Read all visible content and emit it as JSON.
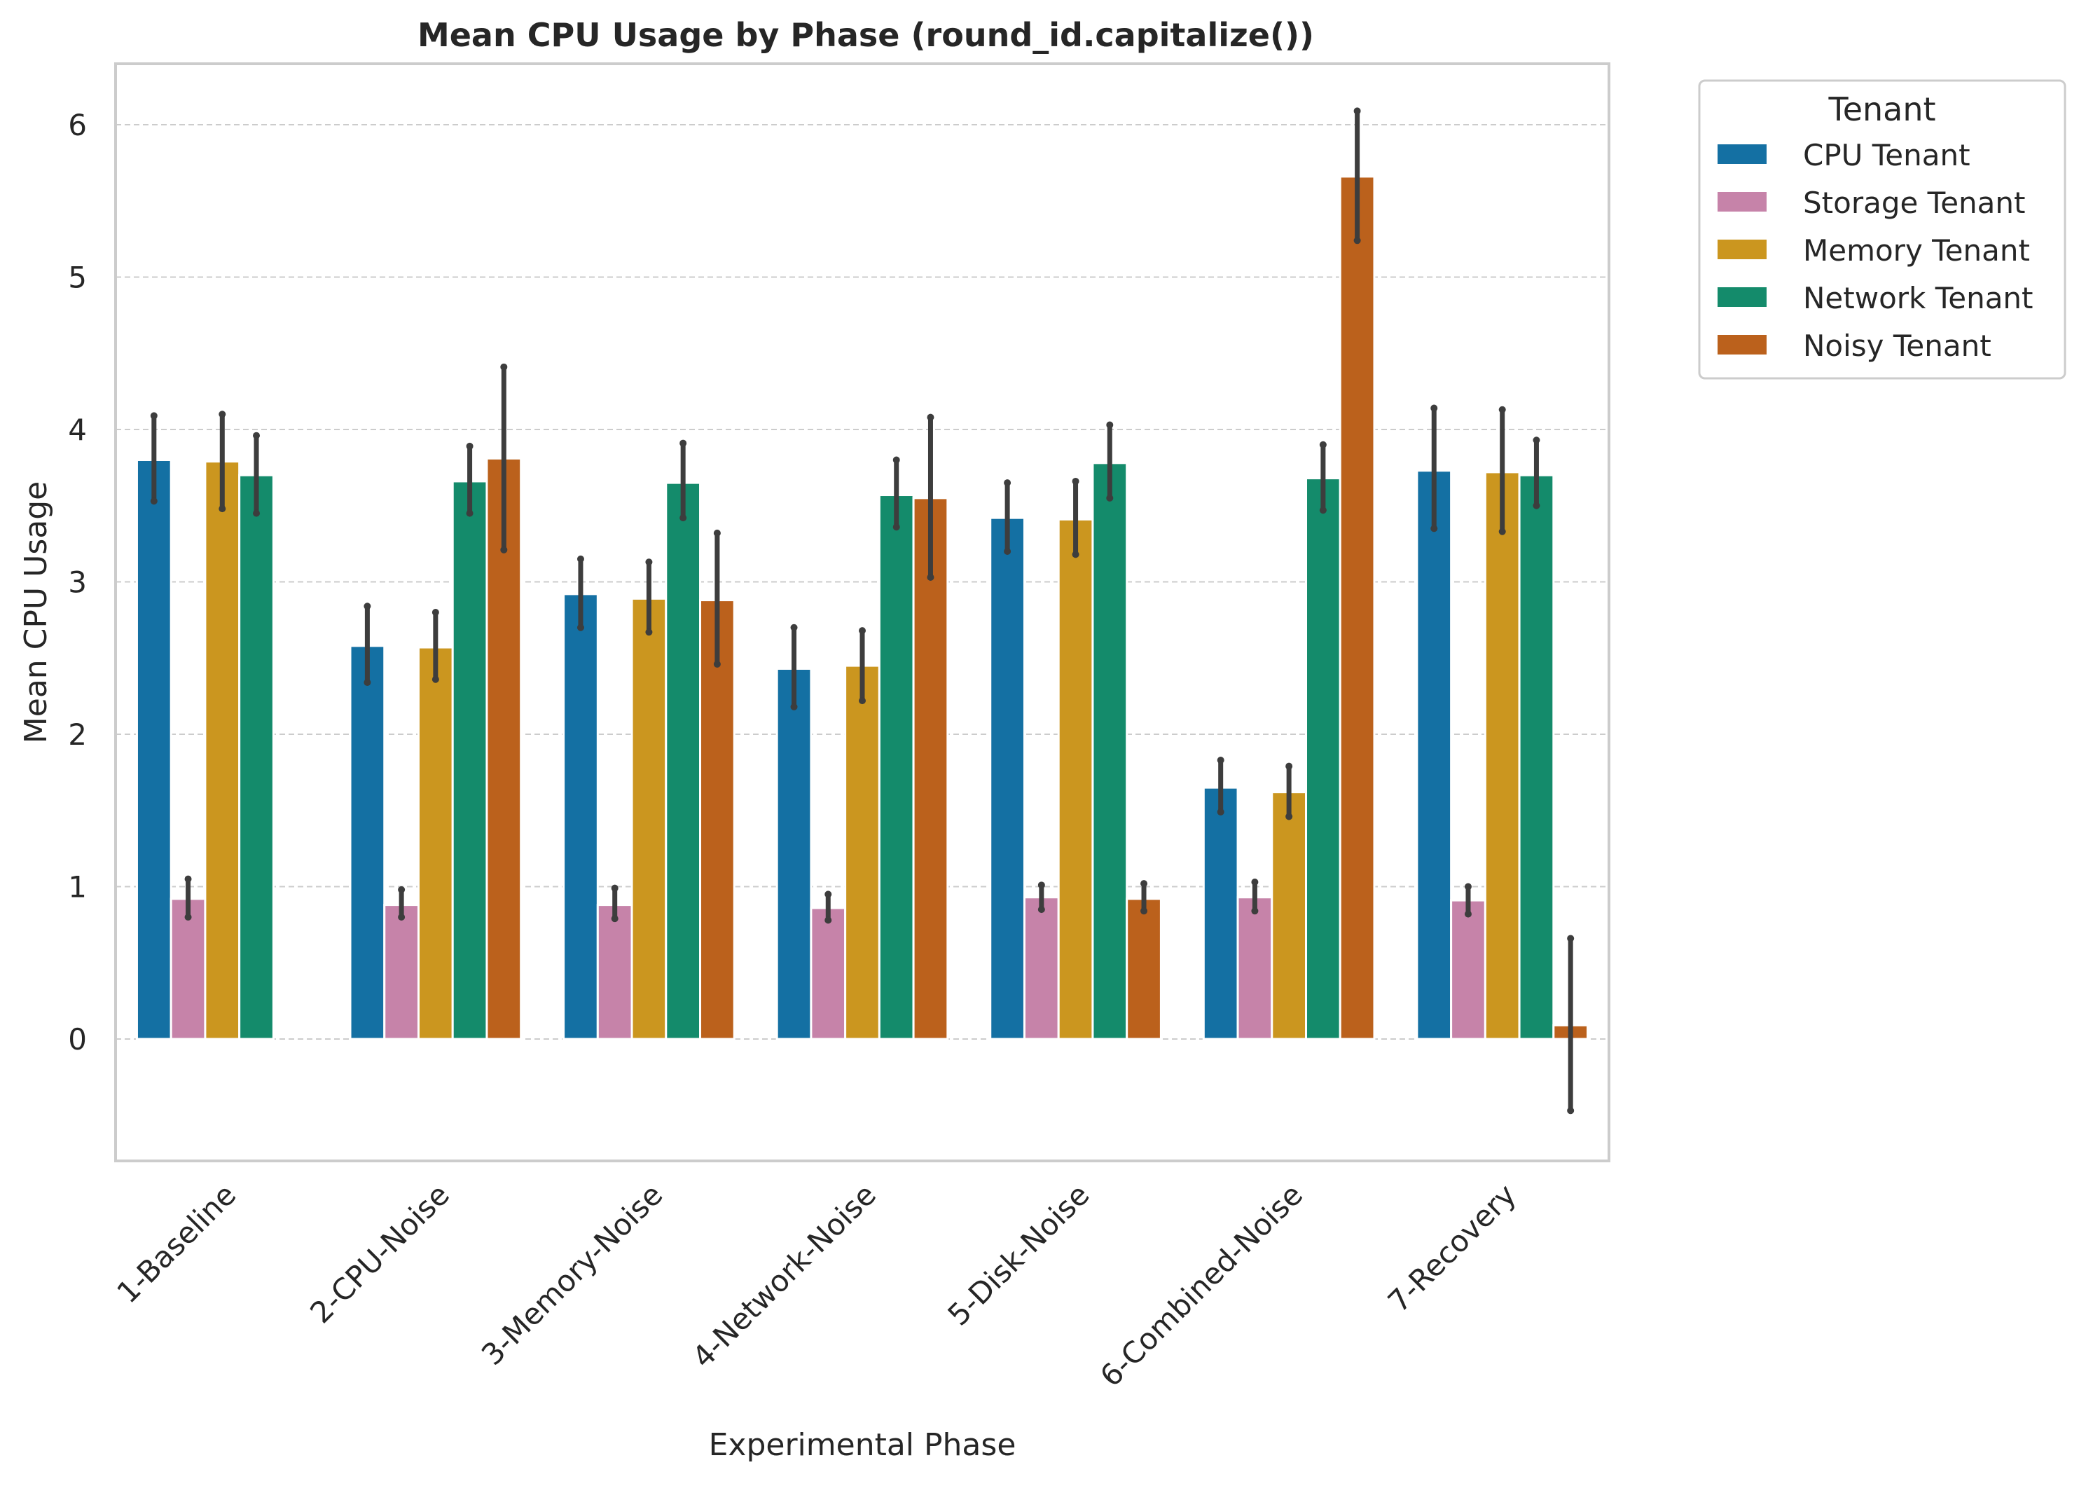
{
  "chart_data": {
    "type": "bar",
    "title": "Mean CPU Usage by Phase (round_id.capitalize())",
    "xlabel": "Experimental Phase",
    "ylabel": "Mean CPU Usage",
    "ylim": [
      -0.8,
      6.4
    ],
    "yticks": [
      "0",
      "1",
      "2",
      "3",
      "4",
      "5",
      "6"
    ],
    "grid": "horizontal dashed",
    "legend_title": "Tenant",
    "legend_position": "outside top-right",
    "categories": [
      "1-Baseline",
      "2-CPU-Noise",
      "3-Memory-Noise",
      "4-Network-Noise",
      "5-Disk-Noise",
      "6-Combined-Noise",
      "7-Recovery"
    ],
    "series": [
      {
        "name": "CPU Tenant",
        "color": "#1470a3",
        "values": [
          3.8,
          2.58,
          2.92,
          2.43,
          3.42,
          1.65,
          3.73
        ],
        "err_low": [
          3.53,
          2.34,
          2.7,
          2.18,
          3.2,
          1.49,
          3.35
        ],
        "err_high": [
          4.09,
          2.84,
          3.15,
          2.7,
          3.65,
          1.83,
          4.14
        ]
      },
      {
        "name": "Storage Tenant",
        "color": "#c683a9",
        "values": [
          0.92,
          0.88,
          0.88,
          0.86,
          0.93,
          0.93,
          0.91
        ],
        "err_low": [
          0.8,
          0.8,
          0.79,
          0.78,
          0.85,
          0.84,
          0.82
        ],
        "err_high": [
          1.05,
          0.98,
          0.99,
          0.95,
          1.01,
          1.03,
          1.0
        ]
      },
      {
        "name": "Memory Tenant",
        "color": "#cb961f",
        "values": [
          3.79,
          2.57,
          2.89,
          2.45,
          3.41,
          1.62,
          3.72
        ],
        "err_low": [
          3.48,
          2.36,
          2.67,
          2.22,
          3.18,
          1.46,
          3.33
        ],
        "err_high": [
          4.1,
          2.8,
          3.13,
          2.68,
          3.66,
          1.79,
          4.13
        ]
      },
      {
        "name": "Network Tenant",
        "color": "#148b6b",
        "values": [
          3.7,
          3.66,
          3.65,
          3.57,
          3.78,
          3.68,
          3.7
        ],
        "err_low": [
          3.45,
          3.45,
          3.42,
          3.36,
          3.55,
          3.47,
          3.5
        ],
        "err_high": [
          3.96,
          3.89,
          3.91,
          3.8,
          4.03,
          3.9,
          3.93
        ]
      },
      {
        "name": "Noisy Tenant",
        "color": "#bb611c",
        "values": [
          null,
          3.81,
          2.88,
          3.55,
          0.92,
          5.66,
          0.09
        ],
        "err_low": [
          null,
          3.21,
          2.46,
          3.03,
          0.84,
          5.24,
          -0.47
        ],
        "err_high": [
          null,
          4.41,
          3.32,
          4.08,
          1.02,
          6.09,
          0.66
        ]
      }
    ]
  }
}
